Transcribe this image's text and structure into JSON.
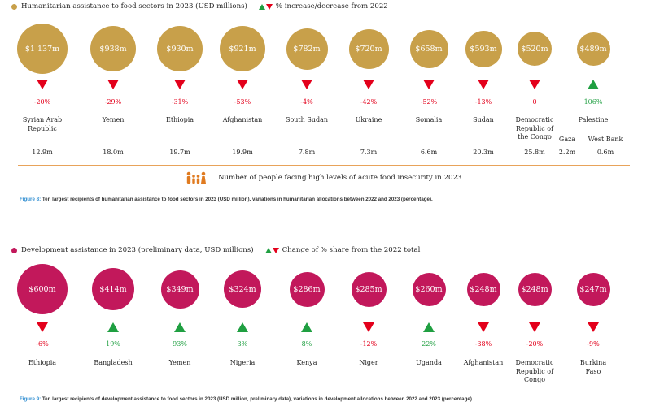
{
  "colors": {
    "humanitarian": "#c8a04a",
    "development": "#c2185b",
    "decrease": "#e3001b",
    "increase": "#1f9f41",
    "divider": "#e8a35a",
    "figure_label": "#2a8bd0",
    "people_icon": "#e07b20"
  },
  "top": {
    "legend_label": "Humanitarian assistance to food sectors in 2023 (USD millions)",
    "change_legend": "% increase/decrease from 2022",
    "population_legend": "Number of people facing high levels of acute food insecurity in 2023",
    "caption_figure": "Figure 8:",
    "caption_text": " Ten largest recipients of humanitarian assistance to food sectors in 2023 (USD million), variations in humanitarian allocations between 2022 and 2023 (percentage).",
    "palestine_sub": {
      "gaza": "Gaza",
      "west_bank": "West Bank",
      "gaza_pop": "2.2m",
      "west_bank_pop": "0.6m"
    }
  },
  "bottom": {
    "legend_label": "Development assistance in 2023 (preliminary data, USD millions)",
    "change_legend": "Change of % share from the 2022 total",
    "caption_figure": "Figure 9:",
    "caption_text": " Ten largest recipients of development assistance to food sectors in 2023 (USD million, preliminary data), variations in development allocations between 2022 and 2023 (percentage)."
  },
  "chart_data": [
    {
      "type": "bubble",
      "title": "Humanitarian assistance to food sectors in 2023 (USD millions)",
      "unit": "USD millions",
      "categories": [
        "Syrian Arab Republic",
        "Yemen",
        "Ethiopia",
        "Afghanistan",
        "South Sudan",
        "Ukraine",
        "Somalia",
        "Sudan",
        "Democratic Republic of the Congo",
        "Palestine"
      ],
      "values": [
        1137,
        938,
        930,
        921,
        782,
        720,
        658,
        593,
        520,
        489
      ],
      "value_labels": [
        "$1 137m",
        "$938m",
        "$930m",
        "$921m",
        "$782m",
        "$720m",
        "$658m",
        "$593m",
        "$520m",
        "$489m"
      ],
      "change_pct": [
        -20,
        -29,
        -31,
        -53,
        -4,
        -42,
        -52,
        -13,
        0,
        106
      ],
      "change_labels": [
        "-20%",
        "-29%",
        "-31%",
        "-53%",
        "-4%",
        "-42%",
        "-52%",
        "-13%",
        "0",
        "106%"
      ],
      "direction": [
        "down",
        "down",
        "down",
        "down",
        "down",
        "down",
        "down",
        "down",
        "down",
        "up"
      ],
      "name_lines": [
        [
          "Syrian Arab",
          "Republic"
        ],
        [
          "Yemen"
        ],
        [
          "Ethiopia"
        ],
        [
          "Afghanistan"
        ],
        [
          "South Sudan"
        ],
        [
          "Ukraine"
        ],
        [
          "Somalia"
        ],
        [
          "Sudan"
        ],
        [
          "Democratic",
          "Republic of",
          "the Congo"
        ],
        [
          "Palestine"
        ]
      ],
      "people_food_insecure": [
        "12.9m",
        "18.0m",
        "19.7m",
        "19.9m",
        "7.8m",
        "7.3m",
        "6.6m",
        "20.3m",
        "25.8m",
        ""
      ]
    },
    {
      "type": "bubble",
      "title": "Development assistance in 2023 (preliminary data, USD millions)",
      "unit": "USD millions",
      "categories": [
        "Ethiopia",
        "Bangladesh",
        "Yemen",
        "Nigeria",
        "Kenya",
        "Niger",
        "Uganda",
        "Afghanistan",
        "Democratic Republic of Congo",
        "Burkina Faso"
      ],
      "values": [
        600,
        414,
        349,
        324,
        286,
        285,
        260,
        248,
        248,
        247
      ],
      "value_labels": [
        "$600m",
        "$414m",
        "$349m",
        "$324m",
        "$286m",
        "$285m",
        "$260m",
        "$248m",
        "$248m",
        "$247m"
      ],
      "change_pct": [
        -6,
        19,
        93,
        3,
        8,
        -12,
        22,
        -38,
        -20,
        -9
      ],
      "change_labels": [
        "-6%",
        "19%",
        "93%",
        "3%",
        "8%",
        "-12%",
        "22%",
        "-38%",
        "-20%",
        "-9%"
      ],
      "direction": [
        "down",
        "up",
        "up",
        "up",
        "up",
        "down",
        "up",
        "down",
        "down",
        "down"
      ],
      "name_lines": [
        [
          "Ethiopia"
        ],
        [
          "Bangladesh"
        ],
        [
          "Yemen"
        ],
        [
          "Nigeria"
        ],
        [
          "Kenya"
        ],
        [
          "Niger"
        ],
        [
          "Uganda"
        ],
        [
          "Afghanistan"
        ],
        [
          "Democratic",
          "Republic of",
          "Congo"
        ],
        [
          "Burkina",
          "Faso"
        ]
      ]
    }
  ]
}
